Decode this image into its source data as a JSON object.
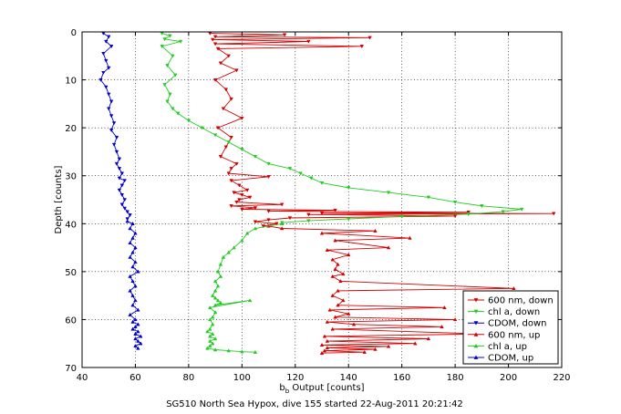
{
  "chart_data": {
    "type": "line",
    "title": "",
    "caption": "SG510 North Sea Hypox, dive 155 started 22-Aug-2011 20:21:42",
    "xlabel_main": "b",
    "xlabel_sub": "b",
    "xlabel_rest": " Output [counts]",
    "ylabel": "Depth [counts]",
    "xlim": [
      40,
      220
    ],
    "ylim": [
      0,
      70
    ],
    "y_reversed": true,
    "grid": true,
    "legend_position": "bottom-right",
    "xticks": [
      40,
      60,
      80,
      100,
      120,
      140,
      160,
      180,
      200,
      220
    ],
    "yticks": [
      0,
      10,
      20,
      30,
      40,
      50,
      60,
      70
    ],
    "series": [
      {
        "name": "600 nm, down",
        "color": "#d40000",
        "marker": "triangle-down",
        "x": [
          88,
          116,
          90,
          148,
          89,
          125,
          90,
          145,
          91,
          95,
          92,
          98,
          90,
          94,
          96,
          93,
          100,
          91,
          96,
          94,
          92,
          98,
          96,
          95,
          110,
          96,
          99,
          102,
          97,
          100,
          103,
          99,
          98,
          115,
          96,
          105,
          100,
          135,
          110,
          185,
          130,
          217,
          125,
          180,
          118,
          110,
          105,
          113,
          108
        ],
        "y": [
          0.3,
          0.6,
          1.0,
          1.2,
          1.6,
          2.0,
          2.5,
          3.0,
          3.5,
          5.0,
          6.5,
          8.0,
          10.0,
          12.0,
          14.0,
          16.0,
          18.0,
          20.0,
          22.0,
          24.0,
          26.0,
          27.5,
          28.5,
          29.5,
          30.2,
          31.0,
          32.0,
          33.0,
          33.5,
          34.0,
          34.5,
          35.0,
          35.5,
          36.0,
          36.3,
          36.7,
          37.0,
          37.2,
          37.4,
          37.6,
          37.8,
          37.9,
          38.1,
          38.4,
          38.8,
          39.2,
          39.6,
          40.0,
          40.5
        ]
      },
      {
        "name": "chl a, down",
        "color": "#22cc22",
        "marker": "triangle-down",
        "x": [
          70,
          73,
          71,
          77,
          70,
          74,
          72,
          75,
          71,
          73,
          72,
          74,
          76,
          80,
          85,
          90,
          95,
          100,
          105,
          110,
          118,
          122,
          126,
          130,
          140,
          155,
          170,
          180,
          190,
          205,
          198,
          185,
          160,
          140,
          125,
          115
        ],
        "y": [
          0.3,
          0.8,
          1.5,
          2.0,
          3.0,
          5.0,
          7.0,
          9.0,
          11.0,
          13.0,
          14.5,
          16.0,
          17.0,
          18.5,
          20.0,
          21.5,
          23.0,
          24.5,
          26.0,
          27.5,
          28.5,
          29.5,
          30.5,
          31.5,
          32.5,
          33.5,
          34.5,
          35.5,
          36.3,
          37.0,
          37.5,
          38.0,
          38.5,
          39.0,
          39.4,
          39.8
        ]
      },
      {
        "name": "CDOM, down",
        "color": "#0000cc",
        "marker": "triangle-down",
        "x": [
          48,
          50,
          49,
          51,
          48,
          49,
          50,
          48,
          47,
          49,
          50,
          51,
          50,
          51,
          52,
          51,
          53,
          52,
          53,
          54,
          53,
          54,
          55,
          54,
          56,
          55,
          54,
          55,
          56,
          55,
          56,
          57,
          58,
          57
        ],
        "y": [
          0.3,
          1.0,
          2.0,
          3.0,
          4.5,
          6.0,
          7.5,
          8.5,
          10.0,
          11.5,
          13.0,
          14.5,
          16.0,
          17.5,
          19.0,
          20.5,
          22.0,
          23.5,
          25.0,
          26.5,
          27.5,
          28.5,
          29.5,
          30.5,
          31.0,
          32.0,
          33.0,
          34.0,
          35.0,
          36.0,
          36.8,
          37.5,
          38.2,
          39.0
        ]
      },
      {
        "name": "600 nm, up",
        "color": "#d40000",
        "marker": "triangle-up",
        "x": [
          110,
          115,
          150,
          130,
          163,
          135,
          155,
          132,
          140,
          134,
          136,
          135,
          138,
          134,
          137,
          202,
          136,
          134,
          138,
          136,
          176,
          133,
          140,
          135,
          180,
          132,
          142,
          175,
          134,
          190,
          131,
          170,
          132,
          165,
          130,
          155,
          132,
          150,
          131,
          146,
          130
        ],
        "y": [
          40.5,
          41.0,
          41.5,
          42.0,
          43.0,
          43.5,
          45.0,
          45.5,
          46.5,
          47.5,
          48.5,
          49.5,
          50.5,
          51.0,
          52.0,
          53.5,
          54.0,
          55.0,
          56.0,
          57.0,
          57.5,
          58.0,
          58.8,
          59.5,
          60.0,
          60.5,
          61.0,
          61.5,
          62.0,
          63.0,
          63.5,
          64.0,
          64.5,
          65.0,
          65.3,
          65.6,
          65.9,
          66.2,
          66.5,
          66.8,
          67.0
        ]
      },
      {
        "name": "chl a, up",
        "color": "#22cc22",
        "marker": "triangle-up",
        "x": [
          115,
          105,
          102,
          100,
          97,
          95,
          93,
          92,
          91,
          92,
          90,
          91,
          90,
          89,
          90,
          91,
          92,
          90,
          103,
          88,
          90,
          89,
          88,
          89,
          88,
          87,
          89,
          88,
          90,
          88,
          89,
          88,
          87,
          90,
          95,
          100,
          105
        ],
        "y": [
          40.0,
          41.0,
          42.0,
          43.5,
          45.0,
          46.0,
          47.0,
          48.5,
          50.0,
          51.0,
          52.0,
          53.0,
          54.0,
          55.0,
          55.5,
          56.0,
          56.5,
          57.0,
          56.0,
          57.5,
          58.5,
          59.5,
          60.0,
          61.0,
          62.0,
          62.5,
          63.0,
          63.5,
          64.0,
          64.5,
          65.0,
          65.5,
          66.0,
          66.3,
          66.5,
          66.7,
          66.8
        ]
      },
      {
        "name": "CDOM, up",
        "color": "#0000cc",
        "marker": "triangle-up",
        "x": [
          57,
          59,
          58,
          60,
          59,
          58,
          60,
          59,
          58,
          60,
          59,
          61,
          58,
          59,
          60,
          58,
          59,
          60,
          59,
          61,
          58,
          60,
          59,
          61,
          60,
          59,
          61,
          60,
          62,
          60,
          61,
          62,
          60,
          61
        ],
        "y": [
          39.5,
          40.0,
          41.0,
          42.0,
          43.0,
          44.0,
          45.0,
          46.0,
          47.0,
          48.0,
          49.0,
          50.0,
          51.0,
          52.0,
          53.0,
          54.0,
          55.0,
          56.0,
          57.0,
          58.0,
          59.0,
          60.0,
          60.5,
          61.0,
          61.5,
          62.0,
          62.5,
          63.0,
          63.5,
          64.0,
          64.5,
          65.0,
          65.5,
          66.0
        ]
      }
    ]
  }
}
